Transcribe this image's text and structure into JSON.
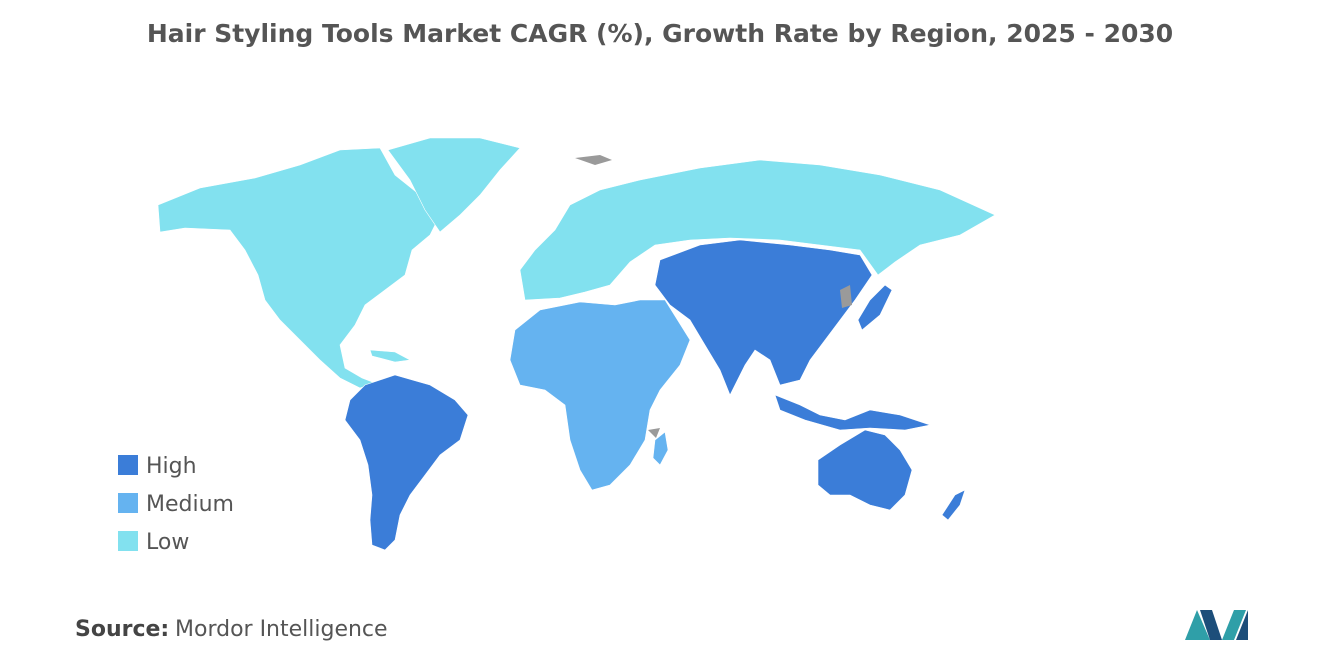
{
  "title": "Hair Styling Tools Market CAGR (%), Growth Rate by Region, 2025 - 2030",
  "legend": [
    {
      "label": "High",
      "color": "#3b7dd8"
    },
    {
      "label": "Medium",
      "color": "#65b3f0"
    },
    {
      "label": "Low",
      "color": "#82e1ef"
    }
  ],
  "source": {
    "label": "Source:",
    "text": "Mordor Intelligence"
  }
}
